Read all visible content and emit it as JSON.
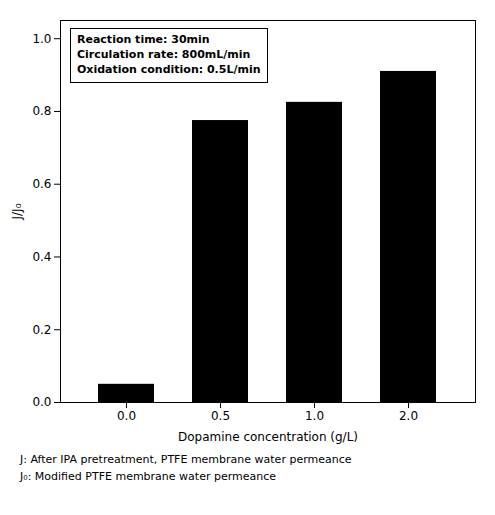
{
  "chart_data": {
    "type": "bar",
    "xlabel": "Dopamine concentration (g/L)",
    "ylabel": "J/J₀",
    "categories": [
      "0.0",
      "0.5",
      "1.0",
      "2.0"
    ],
    "values": [
      0.05,
      0.775,
      0.825,
      0.91
    ],
    "color": "#000000",
    "ylim": [
      0.0,
      1.05
    ],
    "yticks": [
      {
        "value": 0.0,
        "label": "0.0"
      },
      0.2,
      0.4,
      0.6,
      0.8,
      {
        "value": 1.0,
        "label": "1.0"
      }
    ],
    "annotations": [
      "Reaction time: 30min",
      "Circulation rate: 800mL/min",
      "Oxidation condition: 0.5L/min"
    ],
    "footnotes": [
      "J: After IPA pretreatment, PTFE membrane water permeance",
      "J₀: Modified PTFE membrane water permeance"
    ]
  }
}
